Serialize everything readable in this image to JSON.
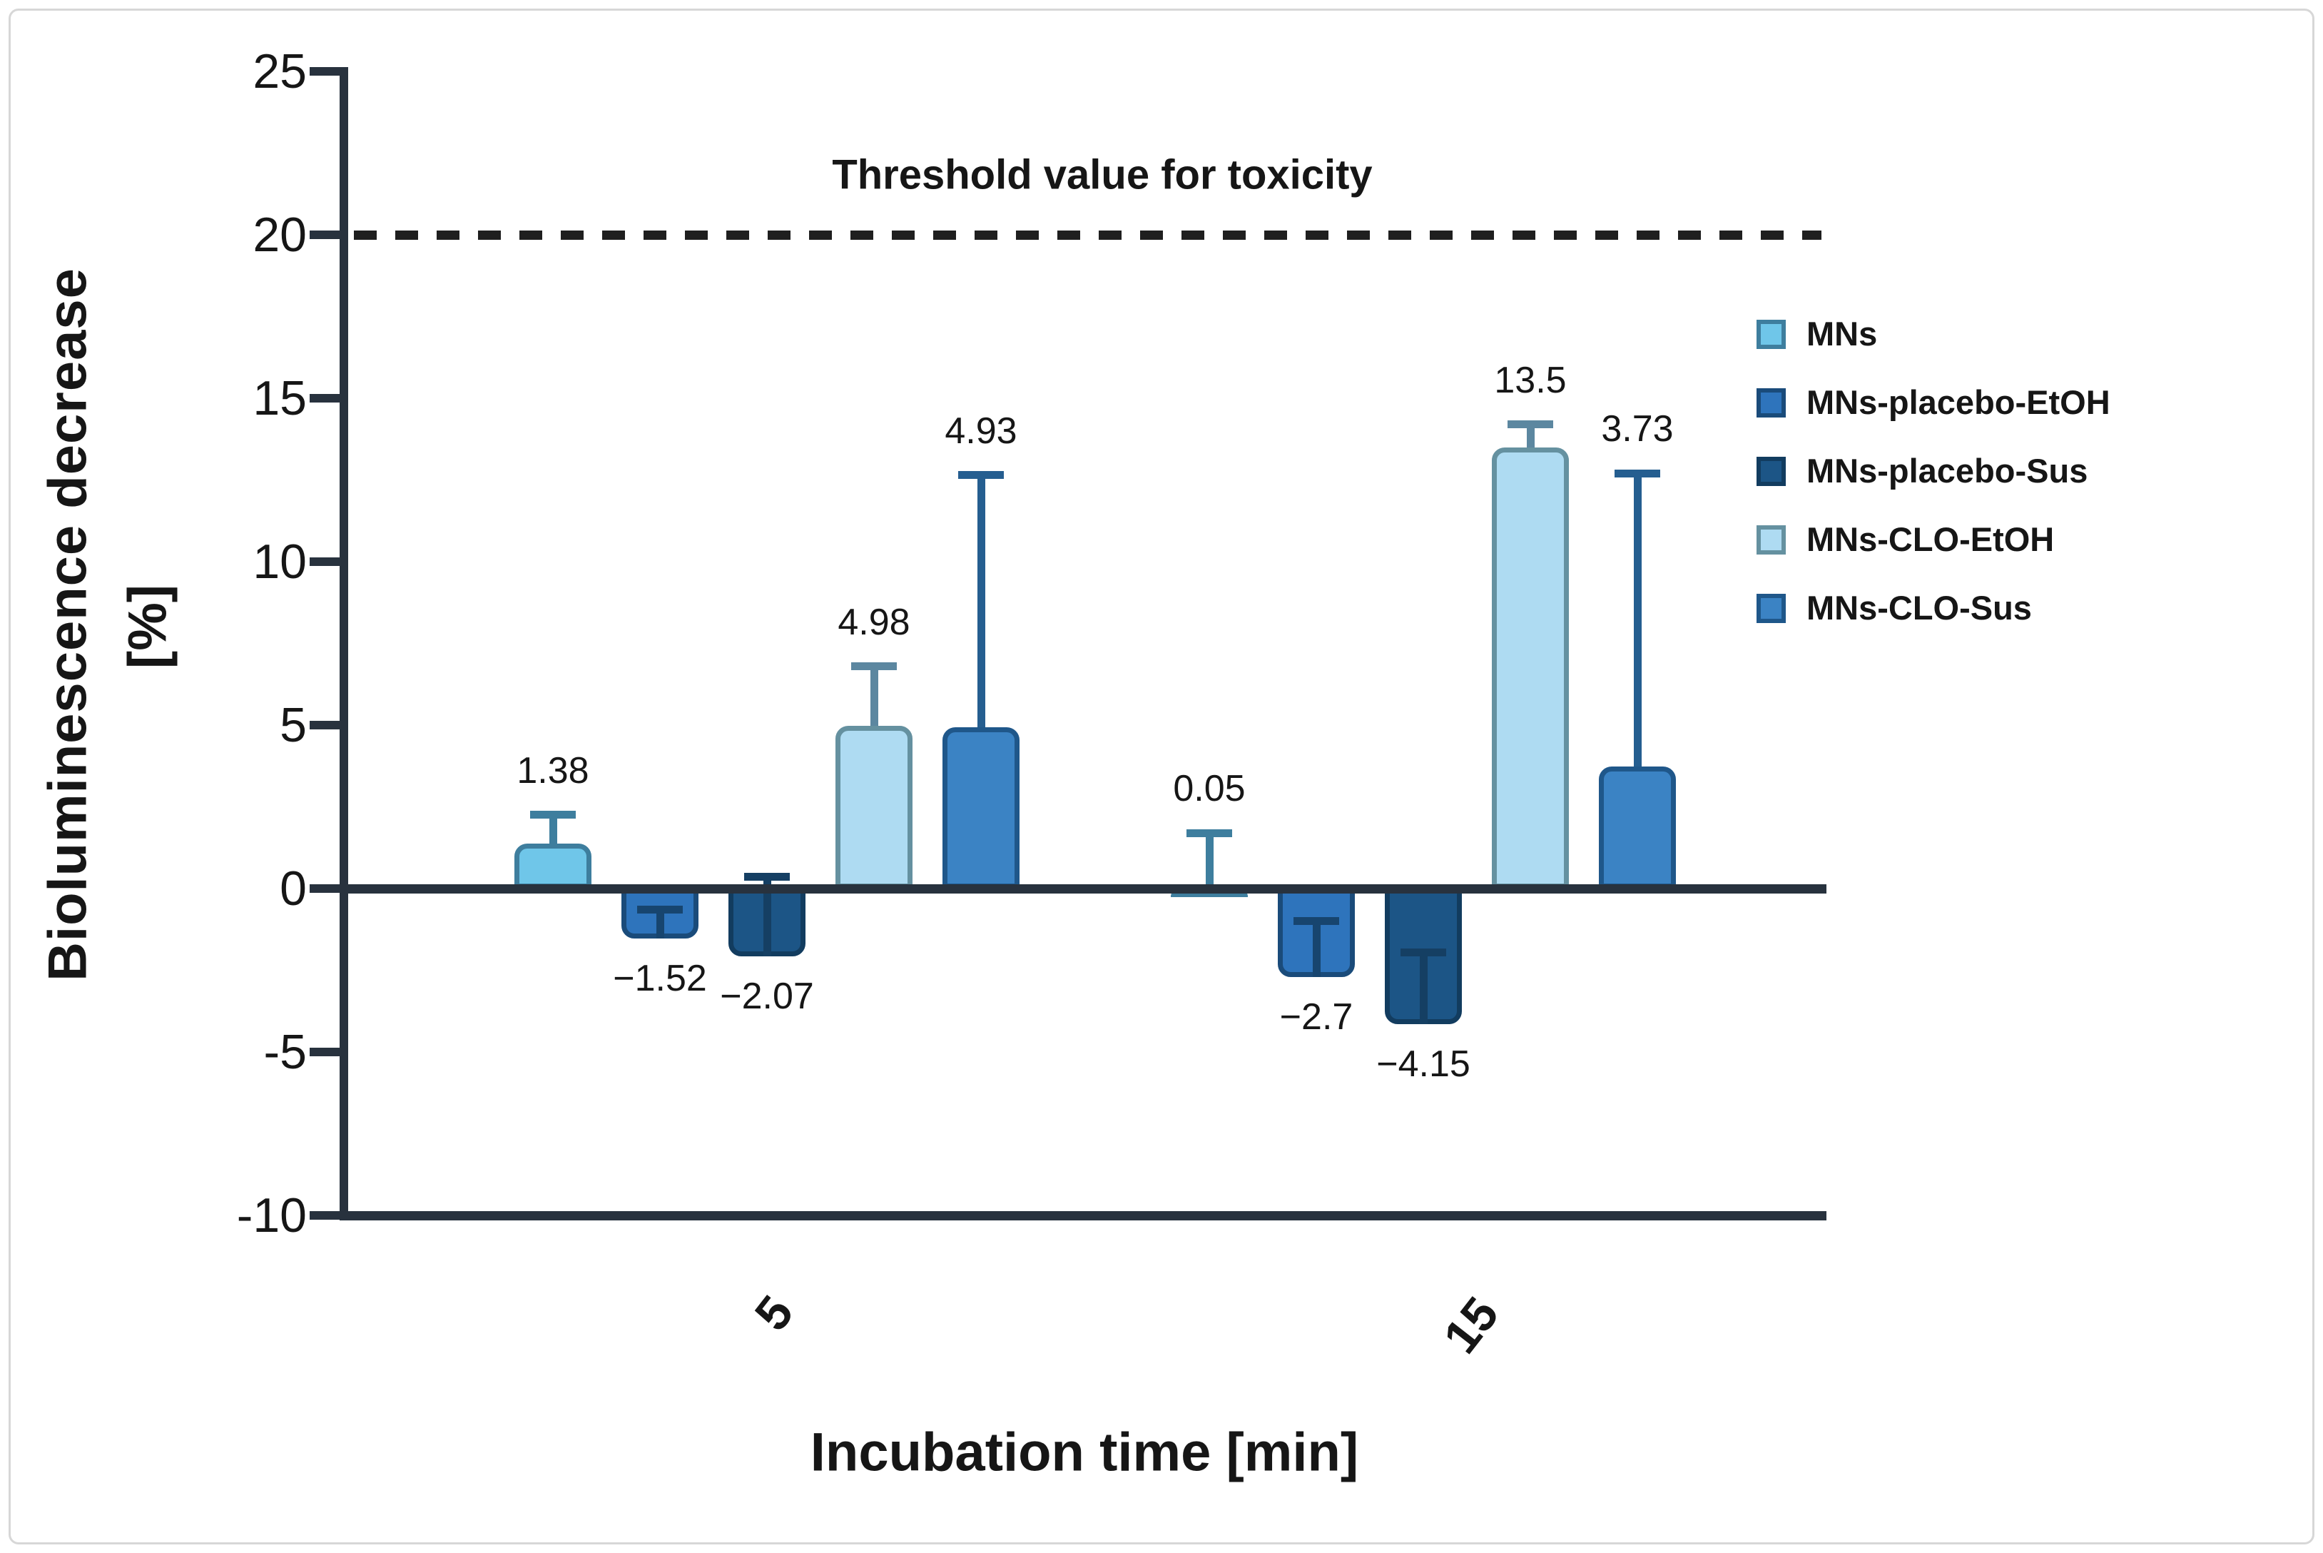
{
  "chart_data": {
    "type": "bar",
    "xlabel": "Incubation time [min]",
    "ylabel": "Bioluminescence decrease",
    "ylabel_unit": "[%]",
    "ylim": [
      -10,
      25
    ],
    "ytick_labels": [
      "25",
      "20",
      "15",
      "10",
      "5",
      "0",
      "-5",
      "-10"
    ],
    "ytick_values": [
      25,
      20,
      15,
      10,
      5,
      0,
      -5,
      -10
    ],
    "categories": [
      "5",
      "15"
    ],
    "grid": false,
    "legend_position": "right",
    "threshold": {
      "value": 20,
      "label": "Threshold value for toxicity"
    },
    "series": [
      {
        "name": "MNs",
        "fill": "#6FC6E9",
        "edge": "#3E7E9E",
        "error_color": "#3E7E9E",
        "values": [
          1.38,
          0.05
        ],
        "value_labels": [
          "1.38",
          "0.05"
        ],
        "error_tops": [
          2.25,
          1.7
        ]
      },
      {
        "name": "MNs-placebo-EtOH",
        "fill": "#2E74BC",
        "edge": "#1A4B7A",
        "error_color": "#17456F",
        "values": [
          -1.52,
          -2.7
        ],
        "value_labels": [
          "−1.52",
          "−2.7"
        ],
        "error_tops": [
          -0.65,
          -1.0
        ]
      },
      {
        "name": "MNs-placebo-Sus",
        "fill": "#1C5586",
        "edge": "#123C5F",
        "error_color": "#153F63",
        "values": [
          -2.07,
          -4.15
        ],
        "value_labels": [
          "−2.07",
          "−4.15"
        ],
        "error_tops": [
          0.35,
          -1.95
        ]
      },
      {
        "name": "MNs-CLO-EtOH",
        "fill": "#AEDBF2",
        "edge": "#6591A0",
        "error_color": "#5C87A0",
        "values": [
          4.98,
          13.5
        ],
        "value_labels": [
          "4.98",
          "13.5"
        ],
        "error_tops": [
          6.8,
          14.2
        ]
      },
      {
        "name": "MNs-CLO-Sus",
        "fill": "#3B83C4",
        "edge": "#1F578A",
        "error_color": "#255E90",
        "values": [
          4.93,
          3.73
        ],
        "value_labels": [
          "4.93",
          "3.73"
        ],
        "error_tops": [
          12.65,
          12.7
        ]
      }
    ],
    "colors": {
      "axis": "#28323E",
      "threshold_line": "#1F1F1F",
      "text": "#161616",
      "frame_border": "#D7D7D7",
      "background": "#FFFFFF"
    }
  }
}
